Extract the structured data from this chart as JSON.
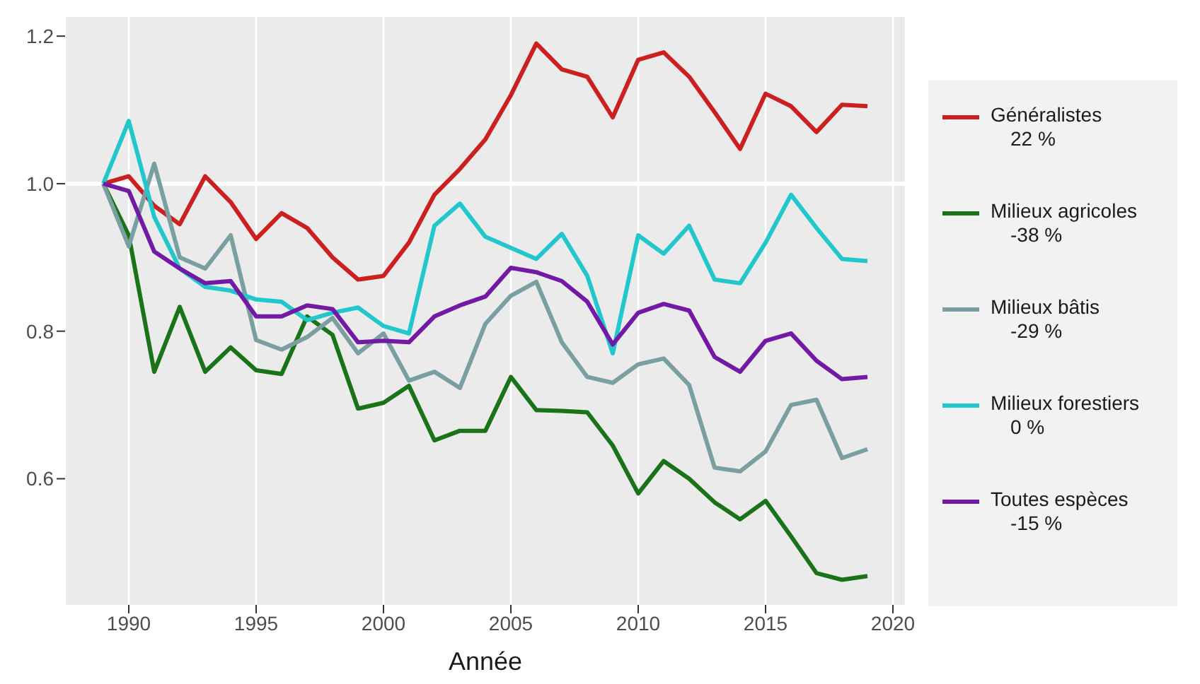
{
  "chart_data": {
    "type": "line",
    "xlabel": "Année",
    "x": [
      1989,
      1990,
      1991,
      1992,
      1993,
      1994,
      1995,
      1996,
      1997,
      1998,
      1999,
      2000,
      2001,
      2002,
      2003,
      2004,
      2005,
      2006,
      2007,
      2008,
      2009,
      2010,
      2011,
      2012,
      2013,
      2014,
      2015,
      2016,
      2017,
      2018,
      2019
    ],
    "series": [
      {
        "name": "Généralistes\n22 %",
        "color": "#cc1f1f",
        "values": [
          1.0,
          1.01,
          0.97,
          0.945,
          1.01,
          0.975,
          0.925,
          0.96,
          0.94,
          0.9,
          0.87,
          0.875,
          0.92,
          0.985,
          1.02,
          1.06,
          1.12,
          1.19,
          1.155,
          1.145,
          1.09,
          1.168,
          1.178,
          1.145,
          1.097,
          1.047,
          1.122,
          1.105,
          1.07,
          1.107,
          1.105
        ]
      },
      {
        "name": "Milieux agricoles\n-38 %",
        "color": "#1a7318",
        "values": [
          1.0,
          0.93,
          0.745,
          0.833,
          0.745,
          0.778,
          0.747,
          0.742,
          0.82,
          0.795,
          0.695,
          0.703,
          0.726,
          0.652,
          0.665,
          0.665,
          0.738,
          0.693,
          0.692,
          0.69,
          0.645,
          0.58,
          0.624,
          0.6,
          0.568,
          0.545,
          0.57,
          0.522,
          0.472,
          0.463,
          0.468
        ]
      },
      {
        "name": "Milieux bâtis\n-29 %",
        "color": "#7a9fa0",
        "values": [
          1.0,
          0.915,
          1.027,
          0.9,
          0.885,
          0.93,
          0.788,
          0.775,
          0.792,
          0.818,
          0.77,
          0.797,
          0.733,
          0.745,
          0.723,
          0.81,
          0.848,
          0.867,
          0.785,
          0.738,
          0.73,
          0.755,
          0.763,
          0.727,
          0.615,
          0.61,
          0.637,
          0.7,
          0.707,
          0.628,
          0.64
        ]
      },
      {
        "name": "Milieux forestiers\n0 %",
        "color": "#22c7cc",
        "values": [
          1.0,
          1.085,
          0.955,
          0.885,
          0.86,
          0.855,
          0.843,
          0.84,
          0.815,
          0.825,
          0.832,
          0.807,
          0.797,
          0.943,
          0.973,
          0.928,
          0.913,
          0.898,
          0.932,
          0.875,
          0.77,
          0.93,
          0.905,
          0.943,
          0.87,
          0.865,
          0.92,
          0.985,
          0.94,
          0.898,
          0.895
        ]
      },
      {
        "name": "Toutes espèces\n-15 %",
        "color": "#7219a6",
        "values": [
          1.0,
          0.99,
          0.908,
          0.885,
          0.865,
          0.868,
          0.82,
          0.82,
          0.835,
          0.83,
          0.785,
          0.787,
          0.785,
          0.82,
          0.835,
          0.847,
          0.886,
          0.88,
          0.868,
          0.84,
          0.782,
          0.825,
          0.837,
          0.828,
          0.765,
          0.745,
          0.787,
          0.797,
          0.76,
          0.735,
          0.738
        ]
      }
    ],
    "xlim": [
      1987.5,
      2020.5
    ],
    "xticks": [
      1990,
      1995,
      2000,
      2005,
      2010,
      2015,
      2020
    ],
    "ylim": [
      0.429,
      1.226
    ],
    "yticks": [
      0.6,
      0.8,
      {
        "value": 1,
        "label": "1.0"
      },
      1.2
    ],
    "ref_lines": [
      {
        "axis": "y",
        "value": 1,
        "color": "#ffffff"
      }
    ],
    "grid": "x",
    "legend": "right",
    "marker": "none",
    "line_style": "solid"
  }
}
